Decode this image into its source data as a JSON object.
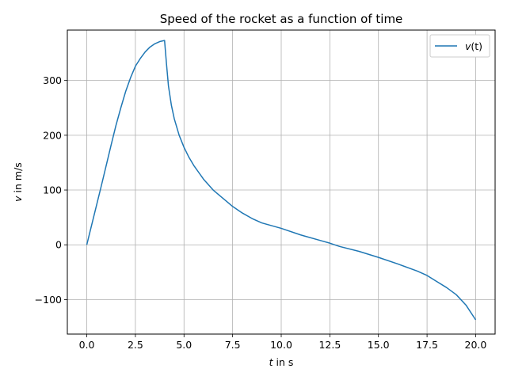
{
  "chart_data": {
    "type": "line",
    "title": "Speed of the rocket as a function of time",
    "xlabel_var": "t",
    "xlabel_rest": " in s",
    "ylabel_var": "v",
    "ylabel_rest": " in m/s",
    "xlim": [
      -1.0,
      21.0
    ],
    "ylim": [
      -163,
      392
    ],
    "xticks": [
      0.0,
      2.5,
      5.0,
      7.5,
      10.0,
      12.5,
      15.0,
      17.5,
      20.0
    ],
    "xtick_labels": [
      "0.0",
      "2.5",
      "5.0",
      "7.5",
      "10.0",
      "12.5",
      "15.0",
      "17.5",
      "20.0"
    ],
    "yticks": [
      -100,
      0,
      100,
      200,
      300
    ],
    "ytick_labels": [
      "−100",
      "0",
      "100",
      "200",
      "300"
    ],
    "grid": true,
    "legend_position": "top-right",
    "series": [
      {
        "name_var": "v",
        "name_paren": "(t)",
        "color": "#1f77b4",
        "x": [
          0,
          0.25,
          0.5,
          0.75,
          1.0,
          1.25,
          1.5,
          1.75,
          2.0,
          2.25,
          2.5,
          2.75,
          3.0,
          3.25,
          3.5,
          3.75,
          4.0,
          4.1,
          4.2,
          4.35,
          4.5,
          4.75,
          5.0,
          5.25,
          5.5,
          6.0,
          6.5,
          7.0,
          7.5,
          8.0,
          8.5,
          9.0,
          10.0,
          11.0,
          12.0,
          12.5,
          13.0,
          14.0,
          15.0,
          16.0,
          17.0,
          17.5,
          18.0,
          18.5,
          19.0,
          19.5,
          20.0
        ],
        "y": [
          0,
          36,
          72,
          108,
          145,
          182,
          218,
          250,
          280,
          305,
          326,
          340,
          352,
          361,
          367,
          371,
          373,
          330,
          290,
          255,
          230,
          200,
          178,
          160,
          145,
          120,
          100,
          85,
          70,
          58,
          48,
          40,
          30,
          18,
          8,
          3,
          -3,
          -12,
          -23,
          -35,
          -48,
          -56,
          -67,
          -78,
          -91,
          -110,
          -137
        ]
      }
    ]
  }
}
